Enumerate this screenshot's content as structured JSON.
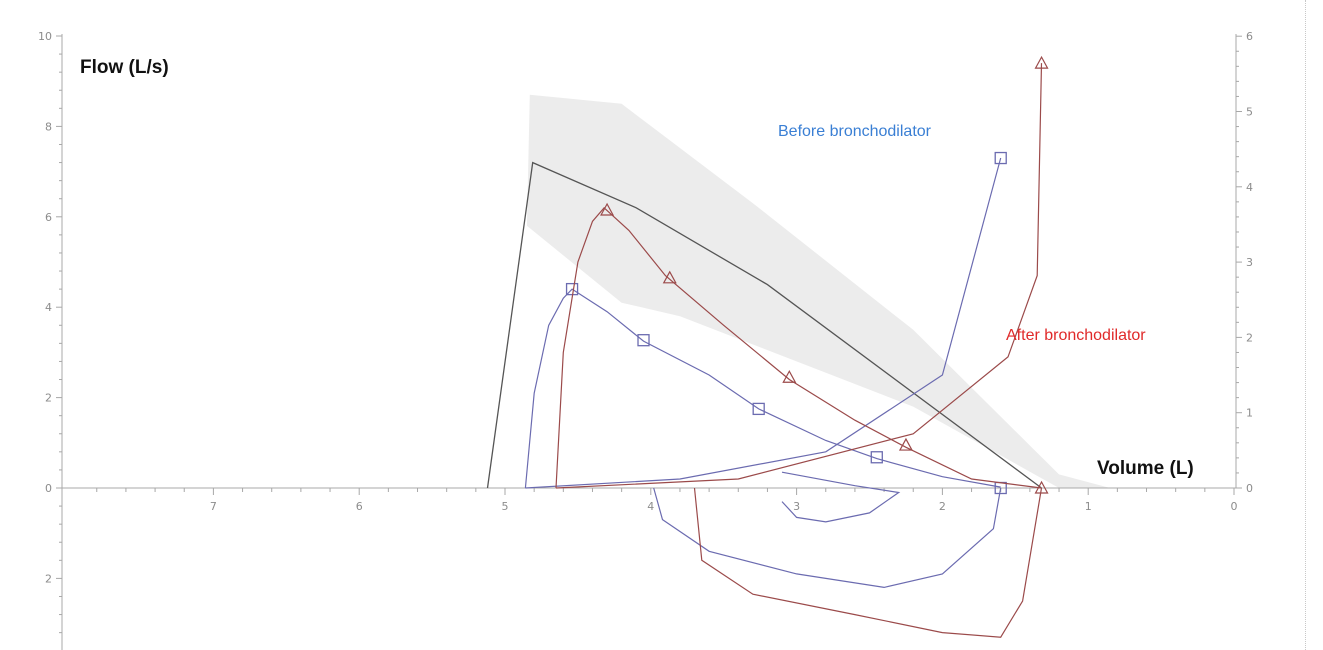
{
  "chart_data": {
    "type": "line",
    "title": "",
    "ylabel": "Flow  (L/s)",
    "xlabel": "Volume (L)",
    "xlim": [
      7.8,
      0
    ],
    "x_reversed": true,
    "ylim": [
      -3.5,
      10
    ],
    "y2lim": [
      0,
      6
    ],
    "x_ticks": [
      "7",
      "6",
      "5",
      "4",
      "3",
      "2",
      "1",
      "0"
    ],
    "y_ticks_pos": [
      "10",
      "8",
      "6",
      "4",
      "2",
      "0"
    ],
    "y_ticks_neg": [
      "2"
    ],
    "y2_ticks": [
      "6",
      "5",
      "4",
      "3",
      "2",
      "1",
      "0"
    ],
    "colors": {
      "before": "#6b6bb0",
      "after": "#9b4a4a",
      "predicted": "#555555",
      "band": "#ececec",
      "before_label": "#3a7fd4",
      "after_label": "#e02a2a"
    },
    "predicted_band": {
      "upper": [
        [
          4.83,
          8.7
        ],
        [
          4.2,
          8.5
        ],
        [
          3.3,
          6.3
        ],
        [
          2.2,
          3.5
        ],
        [
          1.2,
          0.3
        ],
        [
          0.85,
          0
        ]
      ],
      "lower": [
        [
          1.2,
          0
        ],
        [
          2.2,
          1.8
        ],
        [
          3.8,
          3.8
        ],
        [
          4.2,
          4.1
        ],
        [
          4.85,
          5.8
        ]
      ]
    },
    "predicted_line": [
      [
        5.12,
        0
      ],
      [
        4.81,
        7.2
      ],
      [
        4.1,
        6.2
      ],
      [
        3.2,
        4.5
      ],
      [
        1.32,
        0
      ]
    ],
    "series": [
      {
        "name": "Before bronchodilator",
        "marker": "square",
        "expiratory": [
          [
            4.86,
            0
          ],
          [
            4.8,
            2.1
          ],
          [
            4.7,
            3.6
          ],
          [
            4.6,
            4.2
          ],
          [
            4.54,
            4.4
          ],
          [
            4.3,
            3.9
          ],
          [
            4.05,
            3.25
          ],
          [
            3.6,
            2.5
          ],
          [
            3.26,
            1.75
          ],
          [
            2.8,
            1.05
          ],
          [
            2.45,
            0.65
          ],
          [
            2.0,
            0.25
          ],
          [
            1.6,
            0.02
          ]
        ],
        "expiratory_markers": [
          [
            4.54,
            4.4
          ],
          [
            4.05,
            3.27
          ],
          [
            3.26,
            1.75
          ],
          [
            2.45,
            0.68
          ],
          [
            1.6,
            0.0
          ]
        ],
        "inspiratory": [
          [
            3.98,
            0
          ],
          [
            3.92,
            -0.7
          ],
          [
            3.6,
            -1.4
          ],
          [
            3.0,
            -1.9
          ],
          [
            2.4,
            -2.2
          ],
          [
            2.0,
            -1.9
          ],
          [
            1.65,
            -0.9
          ],
          [
            1.6,
            0
          ]
        ],
        "inspiratory_small": [
          [
            3.1,
            0.35
          ],
          [
            2.6,
            0.05
          ],
          [
            2.3,
            -0.1
          ],
          [
            2.5,
            -0.55
          ],
          [
            2.8,
            -0.75
          ],
          [
            3.0,
            -0.65
          ],
          [
            3.1,
            -0.3
          ]
        ],
        "baseline_ramp": [
          [
            4.86,
            0
          ],
          [
            3.8,
            0.2
          ],
          [
            2.8,
            0.8
          ],
          [
            2.0,
            2.5
          ],
          [
            1.6,
            7.3
          ]
        ],
        "end_marker": [
          1.6,
          7.3
        ]
      },
      {
        "name": "After bronchodilator",
        "marker": "triangle",
        "expiratory": [
          [
            4.65,
            0
          ],
          [
            4.6,
            3.0
          ],
          [
            4.5,
            5.0
          ],
          [
            4.4,
            5.9
          ],
          [
            4.32,
            6.2
          ],
          [
            4.15,
            5.7
          ],
          [
            3.9,
            4.7
          ],
          [
            3.5,
            3.6
          ],
          [
            3.05,
            2.4
          ],
          [
            2.6,
            1.5
          ],
          [
            2.25,
            0.9
          ],
          [
            1.8,
            0.2
          ],
          [
            1.32,
            0
          ]
        ],
        "expiratory_markers": [
          [
            4.3,
            6.15
          ],
          [
            3.87,
            4.65
          ],
          [
            3.05,
            2.45
          ],
          [
            2.25,
            0.95
          ],
          [
            1.32,
            0.0
          ]
        ],
        "inspiratory": [
          [
            3.7,
            0
          ],
          [
            3.65,
            -1.6
          ],
          [
            3.3,
            -2.35
          ],
          [
            2.6,
            -2.8
          ],
          [
            2.0,
            -3.2
          ],
          [
            1.6,
            -3.3
          ],
          [
            1.45,
            -2.5
          ],
          [
            1.32,
            0
          ]
        ],
        "baseline_ramp": [
          [
            4.65,
            0
          ],
          [
            3.4,
            0.2
          ],
          [
            2.2,
            1.2
          ],
          [
            1.55,
            2.9
          ],
          [
            1.35,
            4.7
          ],
          [
            1.32,
            9.4
          ]
        ],
        "end_marker": [
          1.32,
          9.4
        ]
      }
    ]
  }
}
